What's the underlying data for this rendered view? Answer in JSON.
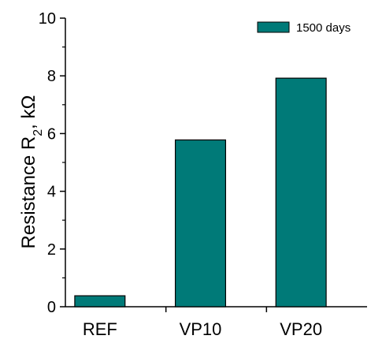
{
  "chart_data": {
    "type": "bar",
    "categories": [
      "REF",
      "VP10",
      "VP20"
    ],
    "series": [
      {
        "name": "1500 days",
        "values": [
          0.38,
          5.78,
          7.92
        ],
        "color": "#007a78"
      }
    ],
    "ylabel_main": "Resistance R",
    "ylabel_sub": "2",
    "ylabel_unit": ", kΩ",
    "ylim": [
      0,
      10
    ],
    "yticks": [
      0,
      2,
      4,
      6,
      8,
      10
    ],
    "grid": false,
    "legend_position": "top-right"
  }
}
